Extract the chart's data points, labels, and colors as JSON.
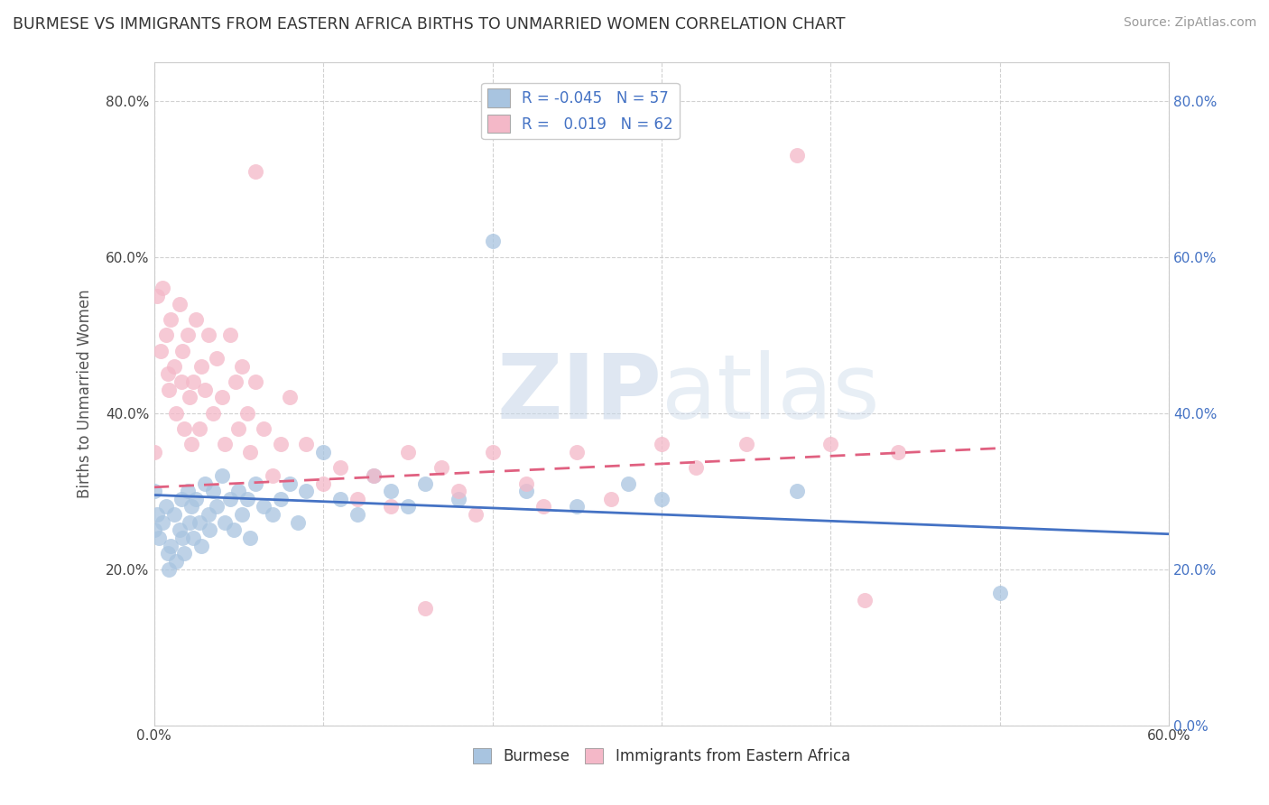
{
  "title": "BURMESE VS IMMIGRANTS FROM EASTERN AFRICA BIRTHS TO UNMARRIED WOMEN CORRELATION CHART",
  "source": "Source: ZipAtlas.com",
  "xlabel_burmese": "Burmese",
  "xlabel_eastern": "Immigrants from Eastern Africa",
  "ylabel": "Births to Unmarried Women",
  "xmin": 0.0,
  "xmax": 0.6,
  "ymin": 0.0,
  "ymax": 0.85,
  "yticks": [
    0.0,
    0.2,
    0.4,
    0.6,
    0.8
  ],
  "ytick_labels_left": [
    "",
    "20.0%",
    "40.0%",
    "60.0%",
    "80.0%"
  ],
  "ytick_labels_right": [
    "0.0%",
    "20.0%",
    "40.0%",
    "60.0%",
    "80.0%"
  ],
  "xtick_positions": [
    0.0,
    0.1,
    0.2,
    0.3,
    0.4,
    0.5,
    0.6
  ],
  "xtick_labels": [
    "0.0%",
    "",
    "",
    "",
    "",
    "",
    "60.0%"
  ],
  "legend_r_blue": "-0.045",
  "legend_n_blue": "57",
  "legend_r_pink": "0.019",
  "legend_n_pink": "62",
  "blue_color": "#a8c4e0",
  "pink_color": "#f4b8c8",
  "blue_line_color": "#4472c4",
  "pink_line_color": "#e06080",
  "grid_color": "#cccccc",
  "background_color": "#ffffff",
  "title_color": "#333333",
  "axis_label_color": "#555555",
  "right_tick_color": "#4472c4",
  "watermark_color": "#d0dae8",
  "blue_scatter_x": [
    0.0,
    0.0,
    0.002,
    0.003,
    0.005,
    0.007,
    0.008,
    0.009,
    0.01,
    0.012,
    0.013,
    0.015,
    0.016,
    0.017,
    0.018,
    0.02,
    0.021,
    0.022,
    0.023,
    0.025,
    0.027,
    0.028,
    0.03,
    0.032,
    0.033,
    0.035,
    0.037,
    0.04,
    0.042,
    0.045,
    0.047,
    0.05,
    0.052,
    0.055,
    0.057,
    0.06,
    0.065,
    0.07,
    0.075,
    0.08,
    0.085,
    0.09,
    0.1,
    0.11,
    0.12,
    0.13,
    0.14,
    0.15,
    0.16,
    0.18,
    0.2,
    0.22,
    0.25,
    0.28,
    0.3,
    0.38,
    0.5
  ],
  "blue_scatter_y": [
    0.3,
    0.25,
    0.27,
    0.24,
    0.26,
    0.28,
    0.22,
    0.2,
    0.23,
    0.27,
    0.21,
    0.25,
    0.29,
    0.24,
    0.22,
    0.3,
    0.26,
    0.28,
    0.24,
    0.29,
    0.26,
    0.23,
    0.31,
    0.27,
    0.25,
    0.3,
    0.28,
    0.32,
    0.26,
    0.29,
    0.25,
    0.3,
    0.27,
    0.29,
    0.24,
    0.31,
    0.28,
    0.27,
    0.29,
    0.31,
    0.26,
    0.3,
    0.35,
    0.29,
    0.27,
    0.32,
    0.3,
    0.28,
    0.31,
    0.29,
    0.62,
    0.3,
    0.28,
    0.31,
    0.29,
    0.3,
    0.17
  ],
  "pink_scatter_x": [
    0.0,
    0.002,
    0.004,
    0.005,
    0.007,
    0.008,
    0.009,
    0.01,
    0.012,
    0.013,
    0.015,
    0.016,
    0.017,
    0.018,
    0.02,
    0.021,
    0.022,
    0.023,
    0.025,
    0.027,
    0.028,
    0.03,
    0.032,
    0.035,
    0.037,
    0.04,
    0.042,
    0.045,
    0.048,
    0.05,
    0.052,
    0.055,
    0.057,
    0.06,
    0.065,
    0.07,
    0.075,
    0.08,
    0.09,
    0.1,
    0.11,
    0.12,
    0.13,
    0.14,
    0.15,
    0.16,
    0.17,
    0.18,
    0.19,
    0.2,
    0.22,
    0.23,
    0.25,
    0.27,
    0.3,
    0.32,
    0.35,
    0.38,
    0.4,
    0.42,
    0.44,
    0.06
  ],
  "pink_scatter_y": [
    0.35,
    0.55,
    0.48,
    0.56,
    0.5,
    0.45,
    0.43,
    0.52,
    0.46,
    0.4,
    0.54,
    0.44,
    0.48,
    0.38,
    0.5,
    0.42,
    0.36,
    0.44,
    0.52,
    0.38,
    0.46,
    0.43,
    0.5,
    0.4,
    0.47,
    0.42,
    0.36,
    0.5,
    0.44,
    0.38,
    0.46,
    0.4,
    0.35,
    0.44,
    0.38,
    0.32,
    0.36,
    0.42,
    0.36,
    0.31,
    0.33,
    0.29,
    0.32,
    0.28,
    0.35,
    0.15,
    0.33,
    0.3,
    0.27,
    0.35,
    0.31,
    0.28,
    0.35,
    0.29,
    0.36,
    0.33,
    0.36,
    0.73,
    0.36,
    0.16,
    0.35,
    0.71
  ],
  "blue_line_x0": 0.0,
  "blue_line_x1": 0.6,
  "blue_line_y0": 0.295,
  "blue_line_y1": 0.245,
  "pink_line_x0": 0.0,
  "pink_line_x1": 0.5,
  "pink_line_y0": 0.305,
  "pink_line_y1": 0.355
}
